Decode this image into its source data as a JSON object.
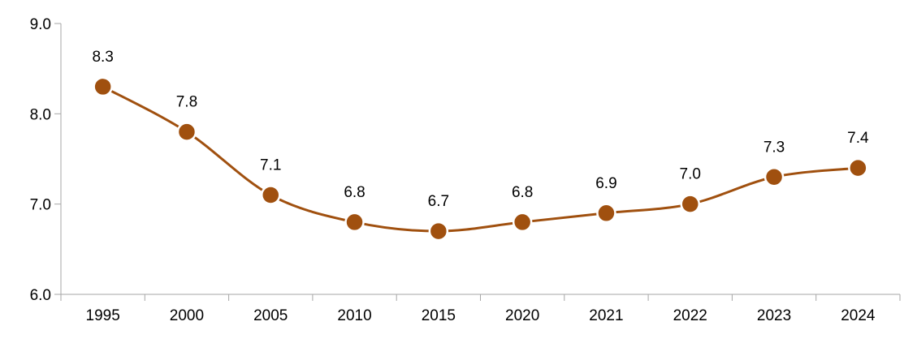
{
  "chart_data": {
    "type": "line",
    "title": "",
    "xlabel": "",
    "ylabel": "",
    "categories": [
      "1995",
      "2000",
      "2005",
      "2010",
      "2015",
      "2020",
      "2021",
      "2022",
      "2023",
      "2024"
    ],
    "series": [
      {
        "values": [
          8.3,
          7.8,
          7.1,
          6.8,
          6.7,
          6.8,
          6.9,
          7.0,
          7.3,
          7.4
        ],
        "labels": [
          "8.3",
          "7.8",
          "7.1",
          "6.8",
          "6.7",
          "6.8",
          "6.9",
          "7.0",
          "7.3",
          "7.4"
        ],
        "color": "#A0500F",
        "smooth": true
      }
    ],
    "ylim": [
      6.0,
      9.0
    ],
    "yticks": [
      "6.0",
      "7.0",
      "8.0",
      "9.0"
    ],
    "grid": false,
    "legend": "none",
    "axis_color": "#A6A6A6"
  }
}
